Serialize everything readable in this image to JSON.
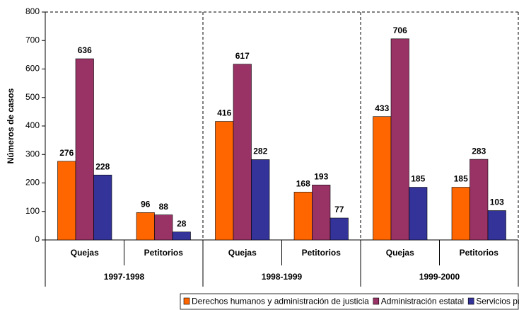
{
  "chart_data": {
    "type": "bar",
    "y_label": "Números de casos",
    "categories": [
      "Quejas",
      "Petitorios",
      "Quejas",
      "Petitorios",
      "Quejas",
      "Petitorios"
    ],
    "groups": [
      "1997-1998",
      "1998-1999",
      "1999-2000"
    ],
    "series": [
      {
        "name": "Derechos humanos y administración de justicia",
        "color": "#ff6600",
        "values": [
          276,
          96,
          416,
          168,
          433,
          185
        ]
      },
      {
        "name": "Administración estatal",
        "color": "#993366",
        "values": [
          636,
          88,
          617,
          193,
          706,
          283
        ]
      },
      {
        "name": "Servicios públicos",
        "color": "#333399",
        "values": [
          228,
          28,
          282,
          77,
          185,
          103
        ]
      }
    ],
    "ylim": [
      0,
      800
    ],
    "yticks": [
      0,
      100,
      200,
      300,
      400,
      500,
      600,
      700,
      800
    ]
  }
}
